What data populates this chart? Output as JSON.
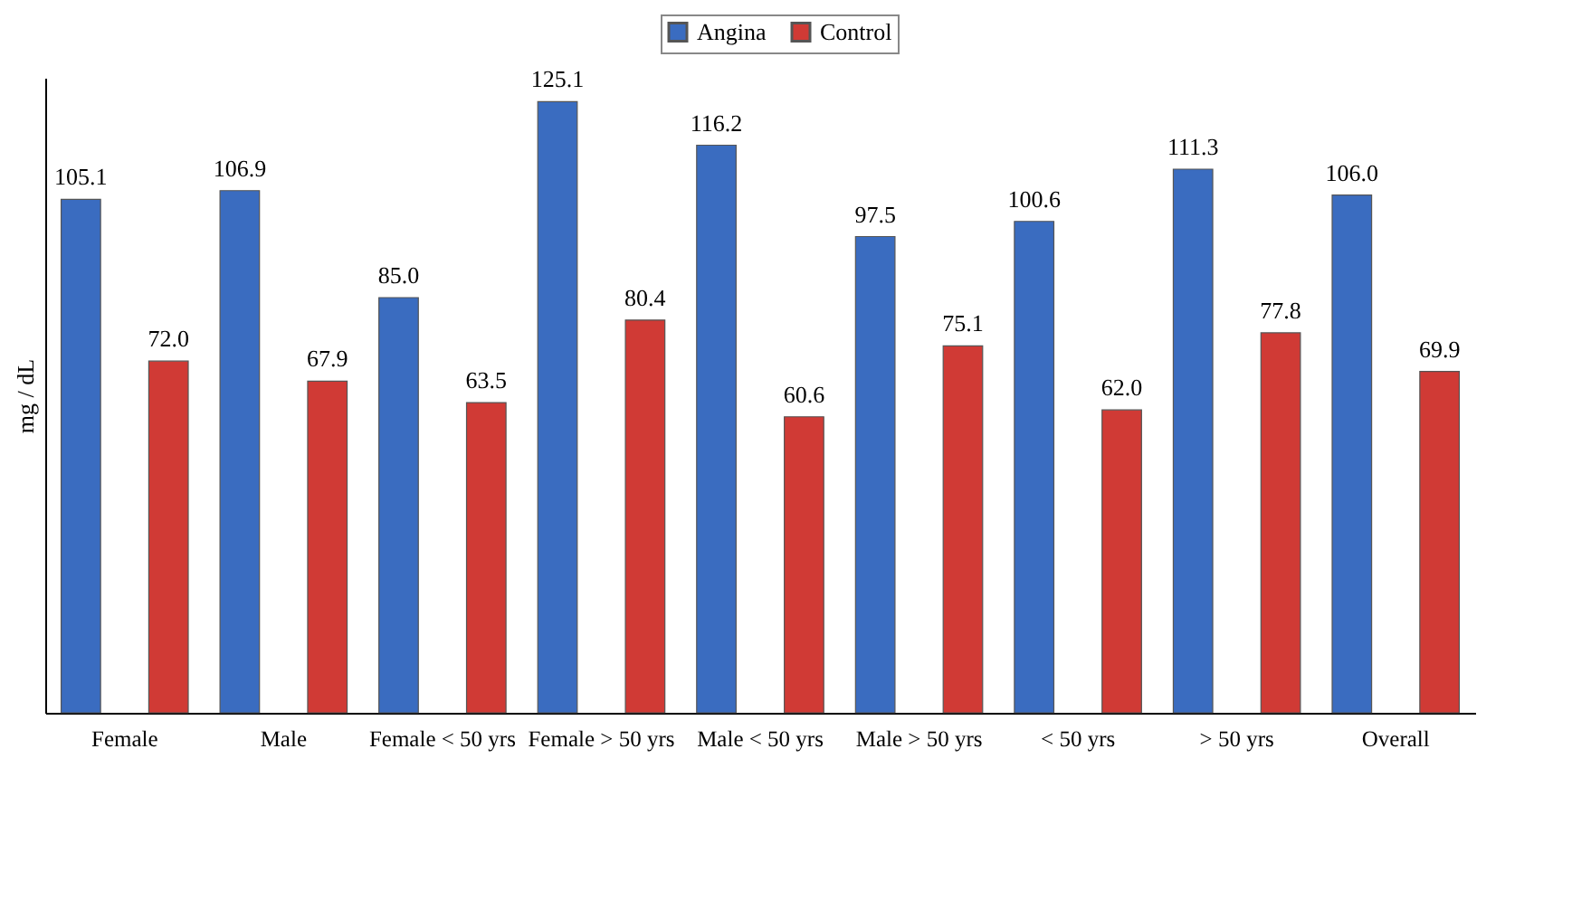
{
  "chart_data": {
    "type": "bar",
    "ylabel": "mg / dL",
    "categories": [
      "Female",
      "Male",
      "Female < 50 yrs",
      "Female > 50 yrs",
      "Male < 50 yrs",
      "Male > 50 yrs",
      "< 50 yrs",
      "> 50 yrs",
      "Overall"
    ],
    "series": [
      {
        "name": "Angina",
        "color": "#3a6cc0",
        "values": [
          105.1,
          106.9,
          85.0,
          125.1,
          116.2,
          97.5,
          100.6,
          111.3,
          106.0
        ],
        "value_labels": [
          "105.1",
          "106.9",
          "85.0",
          "125.1",
          "116.2",
          "97.5",
          "100.6",
          "111.3",
          "106.0"
        ]
      },
      {
        "name": "Control",
        "color": "#d03a35",
        "values": [
          72.0,
          67.9,
          63.5,
          80.4,
          60.6,
          75.1,
          62.0,
          77.8,
          69.9
        ],
        "value_labels": [
          "72.0",
          "67.9",
          "63.5",
          "80.4",
          "60.6",
          "75.1",
          "62.0",
          "77.8",
          "69.9"
        ]
      }
    ],
    "legend": "top",
    "grid": false
  }
}
